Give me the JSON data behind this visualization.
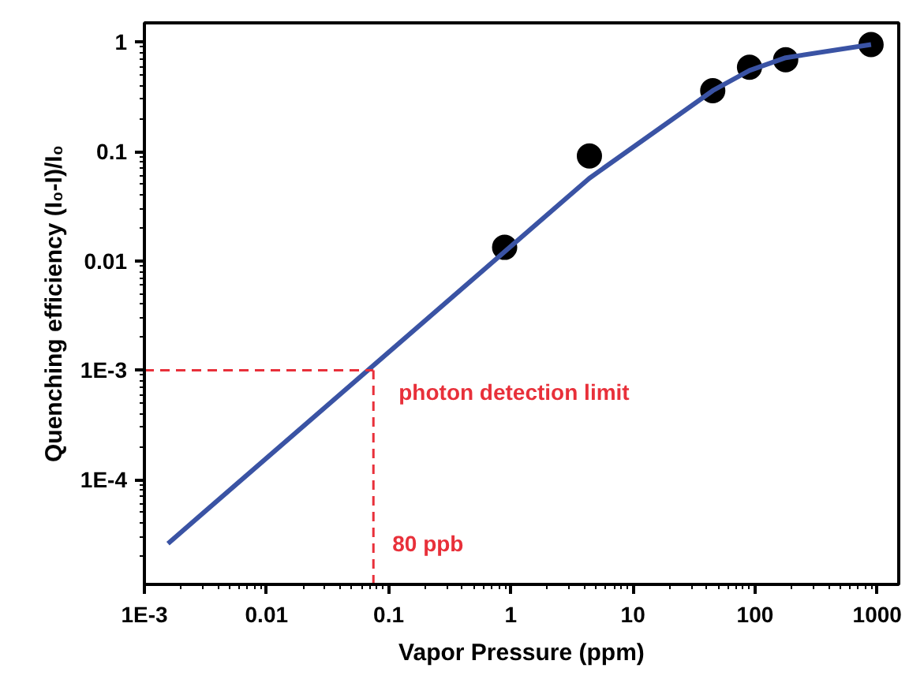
{
  "chart_data": {
    "type": "scatter",
    "xlabel": "Vapor Pressure (ppm)",
    "ylabel": "Quenching efficiency (I₀-I)/I₀",
    "log": "xy",
    "grid": false,
    "marker": "circle",
    "xlim": [
      0.001,
      1500
    ],
    "ylim": [
      1.1e-05,
      1.5
    ],
    "xticks": [
      {
        "value": 0.001,
        "label": "1E-3"
      },
      0.01,
      0.1,
      1,
      10,
      100,
      1000
    ],
    "yticks": [
      {
        "value": 0.0001,
        "label": "1E-4"
      },
      {
        "value": 0.001,
        "label": "1E-3"
      },
      0.01,
      0.1,
      1
    ],
    "series": [
      {
        "color": "#000000",
        "x": [
          0.89,
          4.4,
          45,
          90,
          178,
          890
        ],
        "values": [
          0.0133,
          0.091,
          0.36,
          0.59,
          0.69,
          0.95
        ]
      },
      {
        "type": "line",
        "color": "#3a53a4",
        "line_style": "solid",
        "marker": "none",
        "x": [
          0.00156,
          4.4,
          45,
          90,
          178,
          890
        ],
        "values": [
          2.6e-05,
          0.057,
          0.36,
          0.55,
          0.72,
          0.95
        ]
      }
    ],
    "ref_lines": [
      {
        "axis": "y",
        "value": 0.001,
        "label": "photon detection limit",
        "color": "#e8303a",
        "line_style": "dashed"
      },
      {
        "axis": "x",
        "value": 0.075,
        "label": "80 ppb",
        "color": "#e8303a",
        "line_style": "dashed"
      }
    ]
  }
}
